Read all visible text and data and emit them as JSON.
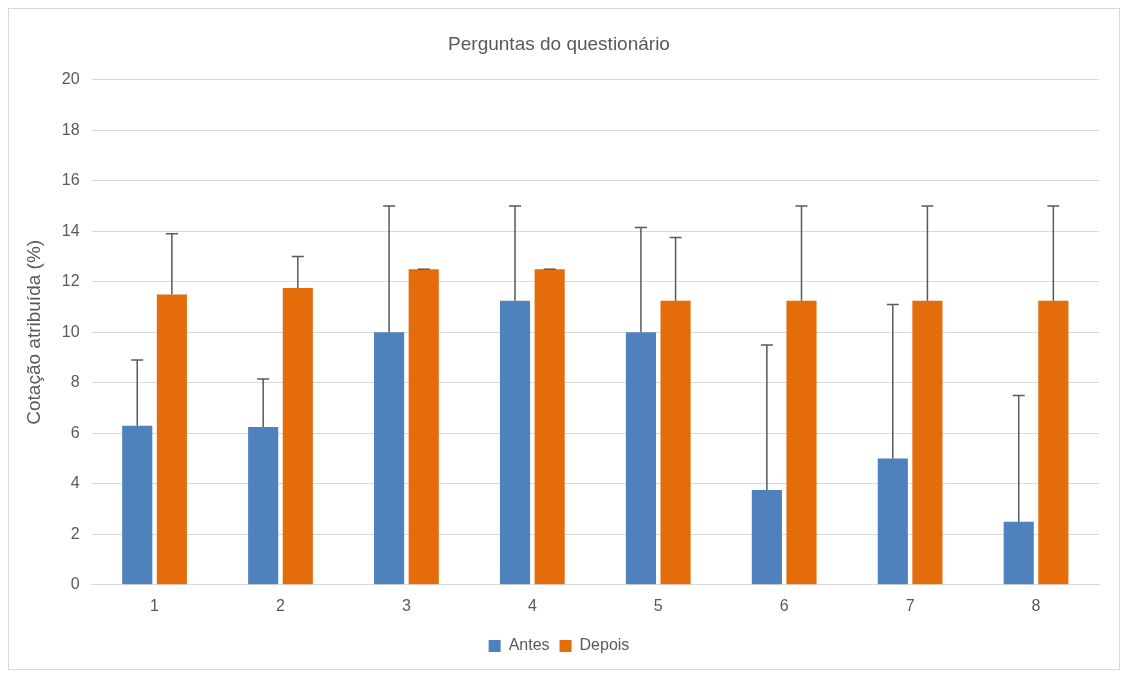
{
  "chart_data": {
    "type": "bar",
    "title": "Perguntas do questionário",
    "ylabel": "Cotação atribuída (%)",
    "categories": [
      "1",
      "2",
      "3",
      "4",
      "5",
      "6",
      "7",
      "8"
    ],
    "series": [
      {
        "name": "Antes",
        "color": "#4f81bd",
        "values": [
          6.3,
          6.25,
          10,
          11.25,
          10,
          3.75,
          5,
          2.5
        ],
        "errors": [
          [
            6.3,
            8.9
          ],
          [
            6.25,
            8.15
          ],
          [
            10,
            15
          ],
          [
            11.25,
            15
          ],
          [
            10,
            14.15
          ],
          [
            3.75,
            9.5
          ],
          [
            5,
            11.1
          ],
          [
            2.5,
            7.5
          ]
        ]
      },
      {
        "name": "Depois",
        "color": "#e46c0a",
        "values": [
          11.5,
          11.75,
          12.5,
          12.5,
          11.25,
          11.25,
          11.25,
          11.25
        ],
        "errors": [
          [
            11.5,
            13.9
          ],
          [
            11.75,
            13
          ],
          [
            12.5,
            12.5
          ],
          [
            12.5,
            12.5
          ],
          [
            11.25,
            13.75
          ],
          [
            11.25,
            15
          ],
          [
            11.25,
            15
          ],
          [
            11.25,
            15
          ]
        ]
      }
    ],
    "ylim": [
      0,
      20
    ],
    "yticks": [
      0,
      2,
      4,
      6,
      8,
      10,
      12,
      14,
      16,
      18,
      20
    ],
    "grid": "y",
    "legend": "bottom"
  }
}
